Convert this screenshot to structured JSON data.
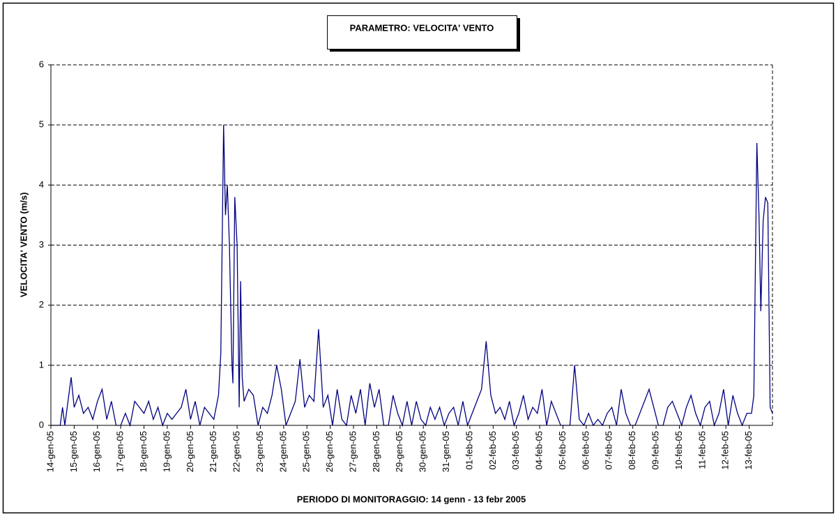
{
  "chart_data": {
    "type": "line",
    "title": "PARAMETRO: VELOCITA' VENTO",
    "x_label": "PERIODO DI MONITORAGGIO: 14 genn - 13 febr 2005",
    "y_label": "VELOCITA' VENTO (m/s)",
    "xlim": [
      0,
      31
    ],
    "ylim": [
      0,
      6
    ],
    "yticks": [
      0,
      1,
      2,
      3,
      4,
      5,
      6
    ],
    "grid": true,
    "xticks": [
      {
        "value": 0,
        "label": "14-gen-05"
      },
      {
        "value": 1,
        "label": "15-gen-05"
      },
      {
        "value": 2,
        "label": "16-gen-05"
      },
      {
        "value": 3,
        "label": "17-gen-05"
      },
      {
        "value": 4,
        "label": "18-gen-05"
      },
      {
        "value": 5,
        "label": "19-gen-05"
      },
      {
        "value": 6,
        "label": "20-gen-05"
      },
      {
        "value": 7,
        "label": "21-gen-05"
      },
      {
        "value": 8,
        "label": "22-gen-05"
      },
      {
        "value": 9,
        "label": "23-gen-05"
      },
      {
        "value": 10,
        "label": "24-gen-05"
      },
      {
        "value": 11,
        "label": "25-gen-05"
      },
      {
        "value": 12,
        "label": "26-gen-05"
      },
      {
        "value": 13,
        "label": "27-gen-05"
      },
      {
        "value": 14,
        "label": "28-gen-05"
      },
      {
        "value": 15,
        "label": "29-gen-05"
      },
      {
        "value": 16,
        "label": "30-gen-05"
      },
      {
        "value": 17,
        "label": "31-gen-05"
      },
      {
        "value": 18,
        "label": "01-feb-05"
      },
      {
        "value": 19,
        "label": "02-feb-05"
      },
      {
        "value": 20,
        "label": "03-feb-05"
      },
      {
        "value": 21,
        "label": "04-feb-05"
      },
      {
        "value": 22,
        "label": "05-feb-05"
      },
      {
        "value": 23,
        "label": "06-feb-05"
      },
      {
        "value": 24,
        "label": "07-feb-05"
      },
      {
        "value": 25,
        "label": "08-feb-05"
      },
      {
        "value": 26,
        "label": "09-feb-05"
      },
      {
        "value": 27,
        "label": "10-feb-05"
      },
      {
        "value": 28,
        "label": "11-feb-05"
      },
      {
        "value": 29,
        "label": "12-feb-05"
      },
      {
        "value": 30,
        "label": "13-feb-05"
      }
    ],
    "x": [
      0,
      0.4,
      0.5,
      0.6,
      0.7,
      0.87,
      1.0,
      1.2,
      1.4,
      1.6,
      1.8,
      2.0,
      2.2,
      2.4,
      2.6,
      2.8,
      3.0,
      3.2,
      3.4,
      3.6,
      3.8,
      4.0,
      4.2,
      4.4,
      4.6,
      4.8,
      5.0,
      5.2,
      5.4,
      5.6,
      5.8,
      6.0,
      6.2,
      6.4,
      6.6,
      6.8,
      7.0,
      7.2,
      7.3,
      7.42,
      7.5,
      7.58,
      7.67,
      7.78,
      7.82,
      7.9,
      8.0,
      8.09,
      8.15,
      8.22,
      8.3,
      8.5,
      8.7,
      8.9,
      9.1,
      9.3,
      9.5,
      9.7,
      9.9,
      10.1,
      10.3,
      10.5,
      10.7,
      10.9,
      11.1,
      11.3,
      11.5,
      11.7,
      11.9,
      12.1,
      12.3,
      12.5,
      12.7,
      12.9,
      13.1,
      13.3,
      13.5,
      13.7,
      13.9,
      14.1,
      14.3,
      14.5,
      14.7,
      14.9,
      15.1,
      15.3,
      15.5,
      15.7,
      15.9,
      16.1,
      16.3,
      16.5,
      16.7,
      16.9,
      17.1,
      17.3,
      17.5,
      17.7,
      17.9,
      18.1,
      18.3,
      18.5,
      18.7,
      18.9,
      19.1,
      19.3,
      19.5,
      19.7,
      19.9,
      20.1,
      20.3,
      20.5,
      20.7,
      20.9,
      21.1,
      21.3,
      21.5,
      21.7,
      21.9,
      22.1,
      22.3,
      22.5,
      22.7,
      22.9,
      23.1,
      23.3,
      23.5,
      23.7,
      23.9,
      24.1,
      24.3,
      24.5,
      24.7,
      24.9,
      25.1,
      25.3,
      25.5,
      25.7,
      25.9,
      26.1,
      26.3,
      26.5,
      26.7,
      26.9,
      27.1,
      27.3,
      27.5,
      27.7,
      27.9,
      28.1,
      28.3,
      28.5,
      28.7,
      28.9,
      29.1,
      29.3,
      29.5,
      29.7,
      29.9,
      30.1,
      30.2,
      30.33,
      30.42,
      30.5,
      30.6,
      30.7,
      30.8,
      30.9,
      31.0
    ],
    "series": [
      {
        "color": "#000080",
        "values": [
          0,
          0,
          0.3,
          0,
          0.3,
          0.8,
          0.3,
          0.5,
          0.2,
          0.3,
          0.1,
          0.4,
          0.6,
          0.1,
          0.4,
          0,
          0,
          0.2,
          0,
          0.4,
          0.3,
          0.2,
          0.4,
          0.1,
          0.3,
          0,
          0.2,
          0.1,
          0.2,
          0.3,
          0.6,
          0.1,
          0.4,
          0,
          0.3,
          0.2,
          0.1,
          0.5,
          1.2,
          5.0,
          3.5,
          4.0,
          3.0,
          1.0,
          0.7,
          3.8,
          3.0,
          0.3,
          2.4,
          0.8,
          0.4,
          0.6,
          0.5,
          0,
          0.3,
          0.2,
          0.5,
          1.0,
          0.6,
          0,
          0.2,
          0.4,
          1.1,
          0.3,
          0.5,
          0.4,
          1.6,
          0.3,
          0.5,
          0,
          0.6,
          0.1,
          0,
          0.5,
          0.2,
          0.6,
          0,
          0.7,
          0.3,
          0.6,
          0,
          0,
          0.5,
          0.2,
          0,
          0.4,
          0,
          0.4,
          0.1,
          0,
          0.3,
          0.1,
          0.3,
          0,
          0.2,
          0.3,
          0,
          0.4,
          0,
          0.2,
          0.4,
          0.6,
          1.4,
          0.5,
          0.2,
          0.3,
          0.1,
          0.4,
          0,
          0.2,
          0.5,
          0.1,
          0.3,
          0.2,
          0.6,
          0,
          0.4,
          0.2,
          0,
          0,
          0,
          1.0,
          0.1,
          0,
          0.2,
          0,
          0.1,
          0,
          0.2,
          0.3,
          0,
          0.6,
          0.2,
          0,
          0,
          0.2,
          0.4,
          0.6,
          0.3,
          0,
          0,
          0.3,
          0.4,
          0.2,
          0,
          0.3,
          0.5,
          0.2,
          0,
          0.3,
          0.4,
          0,
          0.2,
          0.6,
          0,
          0.5,
          0.2,
          0,
          0.2,
          0.2,
          0.5,
          4.7,
          3.5,
          1.9,
          3.4,
          3.8,
          3.7,
          0.3,
          0.2
        ]
      }
    ]
  }
}
